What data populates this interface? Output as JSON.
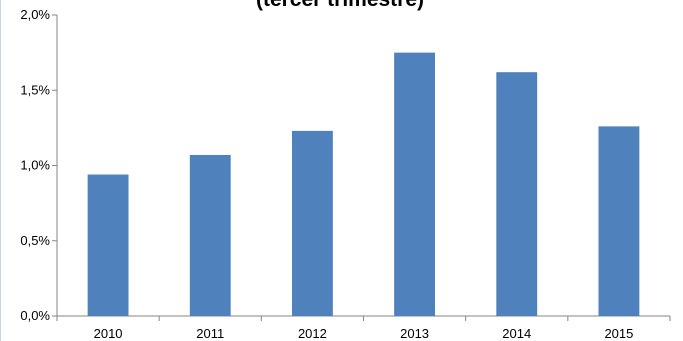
{
  "chart_data": {
    "type": "bar",
    "title": "(tercer trimestre)",
    "xlabel": "",
    "ylabel": "",
    "categories": [
      "2010",
      "2011",
      "2012",
      "2013",
      "2014",
      "2015"
    ],
    "values": [
      0.94,
      1.07,
      1.23,
      1.75,
      1.62,
      1.26
    ],
    "ylim": [
      0,
      2.0
    ],
    "yticks": [
      0,
      0.5,
      1.0,
      1.5,
      2.0
    ],
    "ytick_labels": [
      "0,0%",
      "0,5%",
      "1,0%",
      "1,5%",
      "2,0%"
    ],
    "grid": false,
    "legend": "none",
    "bar_color": "#4f81bd"
  }
}
